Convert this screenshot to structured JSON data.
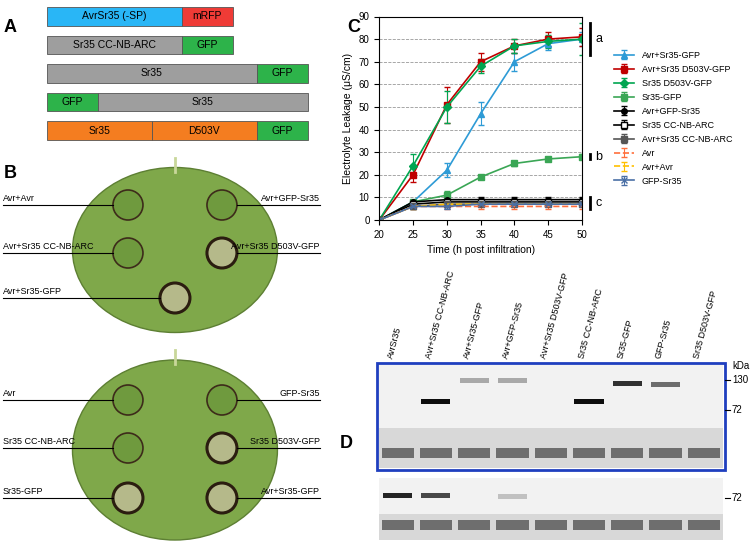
{
  "panel_labels": [
    "A",
    "B",
    "C",
    "D"
  ],
  "panel_a": {
    "constructs": [
      {
        "segments": [
          {
            "label": "AvrSr35 (-SP)",
            "color": "#29b6f6"
          },
          {
            "label": "mRFP",
            "color": "#ef3b36"
          }
        ]
      },
      {
        "segments": [
          {
            "label": "Sr35 CC-NB-ARC",
            "color": "#9e9e9e"
          },
          {
            "label": "GFP",
            "color": "#2db34a"
          }
        ]
      },
      {
        "segments": [
          {
            "label": "Sr35",
            "color": "#9e9e9e"
          },
          {
            "label": "GFP",
            "color": "#2db34a"
          }
        ]
      },
      {
        "segments": [
          {
            "label": "GFP",
            "color": "#2db34a"
          },
          {
            "label": "Sr35",
            "color": "#9e9e9e"
          }
        ]
      },
      {
        "segments": [
          {
            "label": "Sr35",
            "color": "#f47d20"
          },
          {
            "label": "D503V",
            "color": "#f47d20"
          },
          {
            "label": "GFP",
            "color": "#2db34a"
          }
        ]
      }
    ]
  },
  "panel_b": {
    "leaves": [
      {
        "spots": [
          {
            "label": "Avr+Avr",
            "necrosis": false
          },
          {
            "label": "Avr+GFP-Sr35",
            "necrosis": false
          },
          {
            "label": "Avr+Sr35 CC-NB-ARC",
            "necrosis": false
          },
          {
            "label": "Avr+Sr35 D503V-GFP",
            "necrosis": true
          },
          {
            "label": "Avr+Sr35-GFP",
            "necrosis": true
          }
        ]
      },
      {
        "spots": [
          {
            "label": "Avr",
            "necrosis": false
          },
          {
            "label": "GFP-Sr35",
            "necrosis": false
          },
          {
            "label": "Sr35 CC-NB-ARC",
            "necrosis": false
          },
          {
            "label": "Sr35 D503V-GFP",
            "necrosis": true
          },
          {
            "label": "Sr35-GFP",
            "necrosis": true
          },
          {
            "label": "Avr+Sr35-GFP",
            "necrosis": true
          }
        ]
      }
    ]
  },
  "chart_data": {
    "type": "line",
    "x_label": "Time (h post infiltration)",
    "y_label": "Electrolyte Leakage (μS/cm)",
    "x": [
      20,
      25,
      30,
      35,
      40,
      45,
      50
    ],
    "xlim": [
      20,
      50
    ],
    "xticks": [
      20,
      25,
      30,
      35,
      40,
      45,
      50
    ],
    "ylim": [
      0,
      90
    ],
    "yticks": [
      0,
      10,
      20,
      30,
      40,
      50,
      60,
      70,
      80,
      90
    ],
    "grid": true,
    "legend": "right",
    "series": [
      {
        "name": "Avr+Sr35-GFP",
        "color": "#2e9bd6",
        "marker": "triangle",
        "line_style": "solid",
        "values": [
          0,
          8,
          22,
          47,
          70,
          78,
          80
        ],
        "errors": [
          0,
          1,
          3,
          5,
          4,
          3,
          3
        ]
      },
      {
        "name": "Avr+Sr35 D503V-GFP",
        "color": "#c00000",
        "marker": "square",
        "line_style": "solid",
        "values": [
          0,
          20,
          51,
          70,
          77,
          80,
          81
        ],
        "errors": [
          0,
          3,
          8,
          4,
          3,
          3,
          4
        ]
      },
      {
        "name": "Sr35 D503V-GFP",
        "color": "#00a550",
        "marker": "diamond",
        "line_style": "solid",
        "values": [
          0,
          24,
          50,
          68,
          77,
          79,
          80
        ],
        "errors": [
          0,
          5,
          7,
          3,
          3,
          3,
          7
        ]
      },
      {
        "name": "Sr35-GFP",
        "color": "#3aa655",
        "marker": "square",
        "line_style": "solid",
        "values": [
          0,
          8,
          11,
          19,
          25,
          27,
          28
        ],
        "errors": [
          0,
          1,
          2,
          1,
          1,
          1,
          1
        ]
      },
      {
        "name": "Avr+GFP-Sr35",
        "color": "#000000",
        "marker": "circle",
        "line_style": "solid",
        "values": [
          0,
          8,
          9,
          9,
          9,
          9,
          9
        ],
        "errors": [
          0,
          1,
          1,
          1,
          1,
          1,
          1
        ]
      },
      {
        "name": "Sr35 CC-NB-ARC",
        "color": "#000000",
        "marker": "open square",
        "line_style": "solid",
        "values": [
          0,
          7,
          8,
          8,
          8,
          8,
          8
        ],
        "errors": [
          0,
          1,
          1,
          1,
          1,
          1,
          1
        ]
      },
      {
        "name": "Avr+Sr35 CC-NB-ARC",
        "color": "#555555",
        "marker": "square",
        "line_style": "solid",
        "values": [
          0,
          6,
          7,
          7,
          7,
          7,
          7
        ],
        "errors": [
          0,
          1,
          1,
          1,
          1,
          1,
          1
        ]
      },
      {
        "name": "Avr",
        "color": "#ff6f3c",
        "marker": "none",
        "line_style": "dashed",
        "values": [
          0,
          6,
          6,
          6,
          6,
          6,
          6
        ],
        "errors": [
          0,
          1,
          1,
          1,
          1,
          1,
          1
        ]
      },
      {
        "name": "Avr+Avr",
        "color": "#ffc000",
        "marker": "none",
        "line_style": "dashed",
        "values": [
          0,
          6,
          7,
          7,
          7,
          7,
          7
        ],
        "errors": [
          0,
          1,
          1,
          1,
          1,
          1,
          1
        ]
      },
      {
        "name": "GFP-Sr35",
        "color": "#4a6fa5",
        "marker": "x",
        "line_style": "solid",
        "values": [
          0,
          6,
          6,
          7,
          7,
          7,
          7
        ],
        "errors": [
          0,
          1,
          1,
          1,
          1,
          1,
          1
        ]
      }
    ],
    "annotations": [
      {
        "text": "a",
        "series": [
          "Avr+Sr35-GFP",
          "Avr+Sr35 D503V-GFP",
          "Sr35 D503V-GFP"
        ]
      },
      {
        "text": "b",
        "series": [
          "Sr35-GFP"
        ]
      },
      {
        "text": "c",
        "series": [
          "Avr+GFP-Sr35",
          "Sr35 CC-NB-ARC",
          "Avr+Sr35 CC-NB-ARC",
          "Avr",
          "Avr+Avr",
          "GFP-Sr35"
        ]
      }
    ]
  },
  "panel_d": {
    "lanes": [
      "AvrSr35",
      "Avr+Sr35 CC-NB-ARC",
      "Avr+Sr35-GFP",
      "Avr+GFP-Sr35",
      "Avr+Sr35 D503V-GFP",
      "Sr35 CC-NB-ARC",
      "Sr35-GFP",
      "GFP-Sr35",
      "Sr35 D503V-GFP"
    ],
    "marker_unit": "kDa",
    "blots": [
      {
        "markers": [
          130,
          72
        ],
        "bands": [
          {
            "lane": 1,
            "kda": 85,
            "intensity": 0.95
          },
          {
            "lane": 2,
            "kda": 128,
            "intensity": 0.3
          },
          {
            "lane": 3,
            "kda": 128,
            "intensity": 0.3
          },
          {
            "lane": 5,
            "kda": 85,
            "intensity": 0.95
          },
          {
            "lane": 6,
            "kda": 122,
            "intensity": 0.8
          },
          {
            "lane": 7,
            "kda": 120,
            "intensity": 0.55
          }
        ]
      },
      {
        "markers": [
          72
        ],
        "bands": [
          {
            "lane": 0,
            "kda": 76,
            "intensity": 0.85
          },
          {
            "lane": 1,
            "kda": 76,
            "intensity": 0.7
          },
          {
            "lane": 3,
            "kda": 74,
            "intensity": 0.2
          }
        ]
      }
    ]
  }
}
